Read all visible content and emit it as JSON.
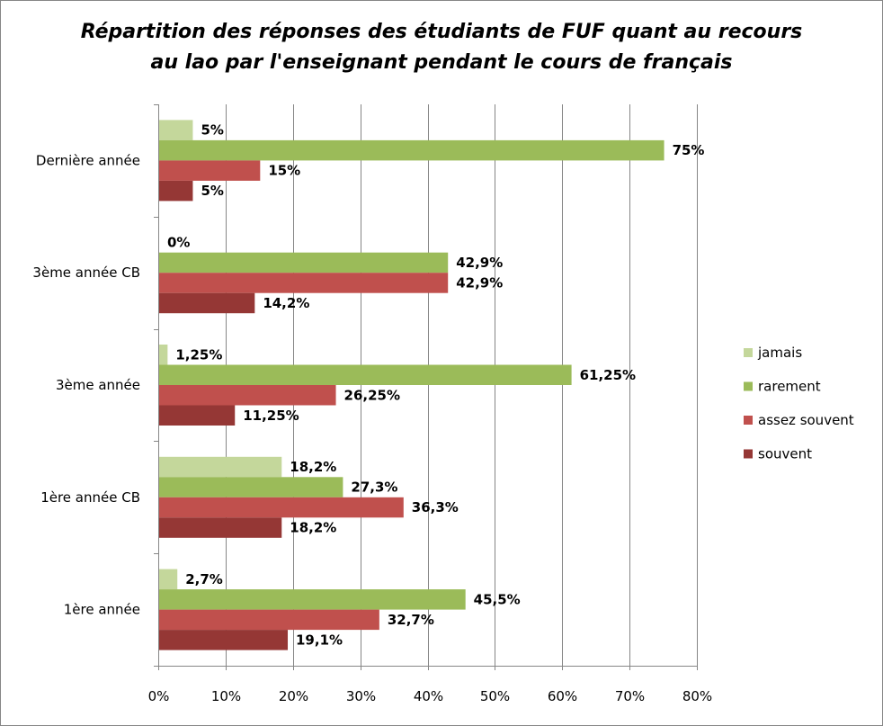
{
  "chart_data": {
    "type": "bar",
    "orientation": "horizontal",
    "title": "Répartition des réponses des étudiants de FUF quant au recours au lao par l'enseignant pendant le cours de français",
    "title_lines": [
      "Répartition des réponses des étudiants de FUF quant au recours",
      "au lao par l'enseignant pendant le cours de français"
    ],
    "categories": [
      "Dernière année",
      "3ème année CB",
      "3ème année",
      "1ère année CB",
      "1ère année"
    ],
    "series": [
      {
        "name": "jamais",
        "color": "#c4d79b",
        "values": [
          5,
          0,
          1.25,
          18.2,
          2.7
        ],
        "labels": [
          "5%",
          "0%",
          "1,25%",
          "18,2%",
          "2,7%"
        ]
      },
      {
        "name": "rarement",
        "color": "#9bbb59",
        "values": [
          75,
          42.9,
          61.25,
          27.3,
          45.5
        ],
        "labels": [
          "75%",
          "42,9%",
          "61,25%",
          "27,3%",
          "45,5%"
        ]
      },
      {
        "name": "assez souvent",
        "color": "#c0504d",
        "values": [
          15,
          42.9,
          26.25,
          36.3,
          32.7
        ],
        "labels": [
          "15%",
          "42,9%",
          "26,25%",
          "36,3%",
          "32,7%"
        ]
      },
      {
        "name": "souvent",
        "color": "#953735",
        "values": [
          5,
          14.2,
          11.25,
          18.2,
          19.1
        ],
        "labels": [
          "5%",
          "14,2%",
          "11,25%",
          "18,2%",
          "19,1%"
        ]
      }
    ],
    "xlim": [
      0,
      80
    ],
    "xticks": [
      "0%",
      "10%",
      "20%",
      "30%",
      "40%",
      "50%",
      "60%",
      "70%",
      "80%"
    ],
    "grid": "vertical",
    "legend": "right"
  }
}
